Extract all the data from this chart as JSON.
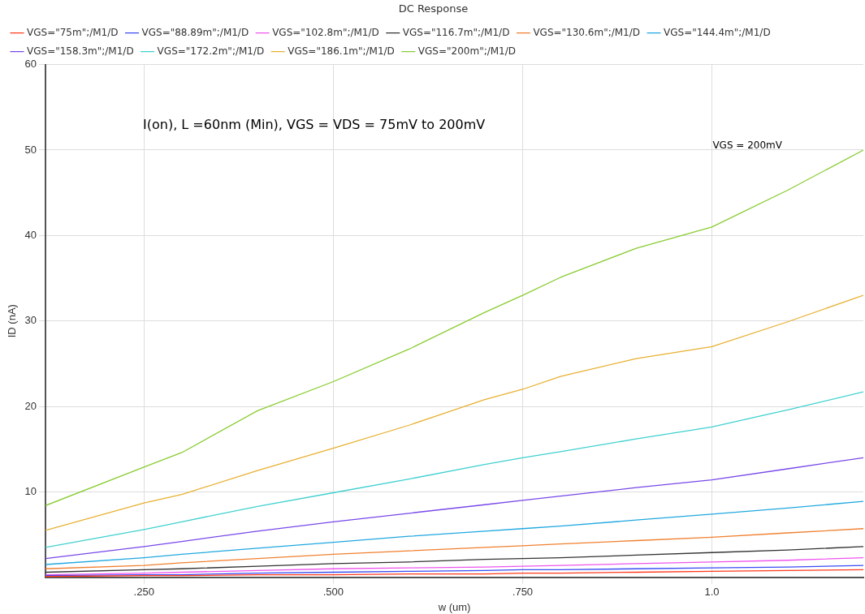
{
  "chart_data": {
    "type": "line",
    "title": "DC Response",
    "xlabel": "w (um)",
    "ylabel": "ID (nA)",
    "x": [
      0.12,
      0.25,
      0.3,
      0.4,
      0.5,
      0.6,
      0.7,
      0.75,
      0.8,
      0.9,
      1.0,
      1.1,
      1.2
    ],
    "series": [
      {
        "name": "VGS=\"75m\";/M1/D",
        "color": "#ff3a1e",
        "values": [
          0.1,
          0.2,
          0.2,
          0.3,
          0.3,
          0.4,
          0.4,
          0.5,
          0.5,
          0.6,
          0.7,
          0.8,
          0.9
        ]
      },
      {
        "name": "VGS=\"88.89m\";/M1/D",
        "color": "#3a4cf4",
        "values": [
          0.2,
          0.3,
          0.3,
          0.5,
          0.6,
          0.7,
          0.8,
          0.9,
          0.9,
          1.0,
          1.1,
          1.2,
          1.4
        ]
      },
      {
        "name": "VGS=\"102.8m\";/M1/D",
        "color": "#ee55ee",
        "values": [
          0.3,
          0.5,
          0.6,
          0.8,
          1.0,
          1.1,
          1.2,
          1.3,
          1.4,
          1.6,
          1.8,
          2.0,
          2.3
        ]
      },
      {
        "name": "VGS=\"116.7m\";/M1/D",
        "color": "#333333",
        "values": [
          0.6,
          0.9,
          1.0,
          1.3,
          1.6,
          1.8,
          2.1,
          2.2,
          2.3,
          2.6,
          2.9,
          3.2,
          3.6
        ]
      },
      {
        "name": "VGS=\"130.6m\";/M1/D",
        "color": "#f08030",
        "values": [
          1.0,
          1.4,
          1.7,
          2.2,
          2.7,
          3.1,
          3.5,
          3.7,
          3.9,
          4.3,
          4.7,
          5.2,
          5.7
        ]
      },
      {
        "name": "VGS=\"144.4m\";/M1/D",
        "color": "#20a8e0",
        "values": [
          1.5,
          2.3,
          2.7,
          3.4,
          4.1,
          4.8,
          5.4,
          5.7,
          6.0,
          6.7,
          7.4,
          8.1,
          8.9
        ]
      },
      {
        "name": "VGS=\"158.3m\";/M1/D",
        "color": "#7848e8",
        "values": [
          2.2,
          3.6,
          4.2,
          5.4,
          6.5,
          7.5,
          8.5,
          9.0,
          9.5,
          10.5,
          11.4,
          12.7,
          14.0
        ]
      },
      {
        "name": "VGS=\"172.2m\";/M1/D",
        "color": "#40d0d0",
        "values": [
          3.5,
          5.6,
          6.5,
          8.3,
          9.9,
          11.5,
          13.2,
          14.0,
          14.7,
          16.2,
          17.6,
          19.6,
          21.7
        ]
      },
      {
        "name": "VGS=\"186.1m\";/M1/D",
        "color": "#e8b030",
        "values": [
          5.5,
          8.7,
          9.7,
          12.5,
          15.1,
          17.8,
          20.8,
          22.0,
          23.5,
          25.6,
          27.0,
          29.9,
          33.0
        ]
      },
      {
        "name": "VGS=\"200m\";/M1/D",
        "color": "#88cc30",
        "values": [
          8.4,
          12.9,
          14.6,
          19.5,
          22.9,
          26.7,
          31.0,
          33.0,
          35.1,
          38.5,
          41.0,
          45.3,
          50.0
        ]
      }
    ],
    "xlim": [
      0.12,
      1.2
    ],
    "xticks": [
      {
        "value": 0.25,
        "label": ".250"
      },
      {
        "value": 0.5,
        "label": ".500"
      },
      {
        "value": 0.75,
        "label": ".750"
      },
      {
        "value": 1.0,
        "label": "1.0"
      }
    ],
    "ylim": [
      0,
      60
    ],
    "yticks": [
      10,
      20,
      30,
      40,
      50,
      60
    ],
    "annotations": [
      "I(on), L =60nm (Min), VGS = VDS = 75mV to 200mV",
      "VGS = 200mV"
    ],
    "grid": true,
    "legend": "top",
    "marker": "none",
    "line_style": "solid"
  }
}
